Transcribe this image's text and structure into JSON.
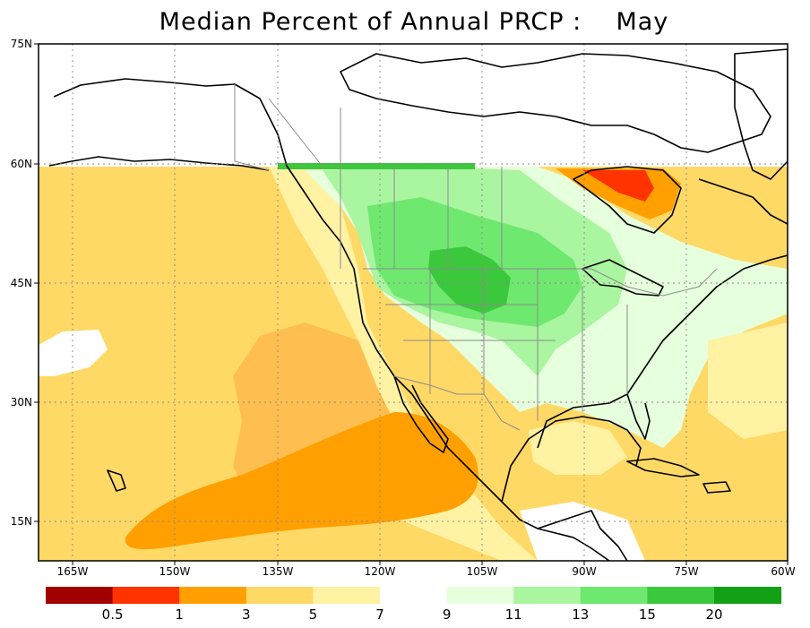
{
  "title": "Median Percent of Annual PRCP :    May",
  "lat_labels": [
    "75N",
    "60N",
    "45N",
    "30N",
    "15N"
  ],
  "lon_labels": [
    "165W",
    "150W",
    "135W",
    "120W",
    "105W",
    "90W",
    "75W",
    "60W"
  ],
  "legend": {
    "colors": [
      "#a00000",
      "#ff3300",
      "#ff9f00",
      "#ffd966",
      "#fff2a3",
      "#ffffff",
      "#e6ffdc",
      "#aaf5a0",
      "#6fe86f",
      "#3cc83c",
      "#14a014"
    ],
    "labels": [
      "0.5",
      "1",
      "3",
      "5",
      "7",
      "9",
      "11",
      "13",
      "15",
      "20"
    ]
  },
  "colors": {
    "dark_orange": "#ff9f00",
    "orange": "#ffbf50",
    "light_orange": "#ffd966",
    "pale_yellow": "#fff2a3",
    "white": "#ffffff",
    "pale_green": "#e6ffdc",
    "light_green": "#aaf5a0",
    "green": "#6fe86f",
    "dark_green": "#3cc83c",
    "red": "#ff3300",
    "dark_red": "#a00000",
    "no_data": "#ffffff",
    "coastline": "#000000",
    "political_border": "#8c8c8c"
  }
}
